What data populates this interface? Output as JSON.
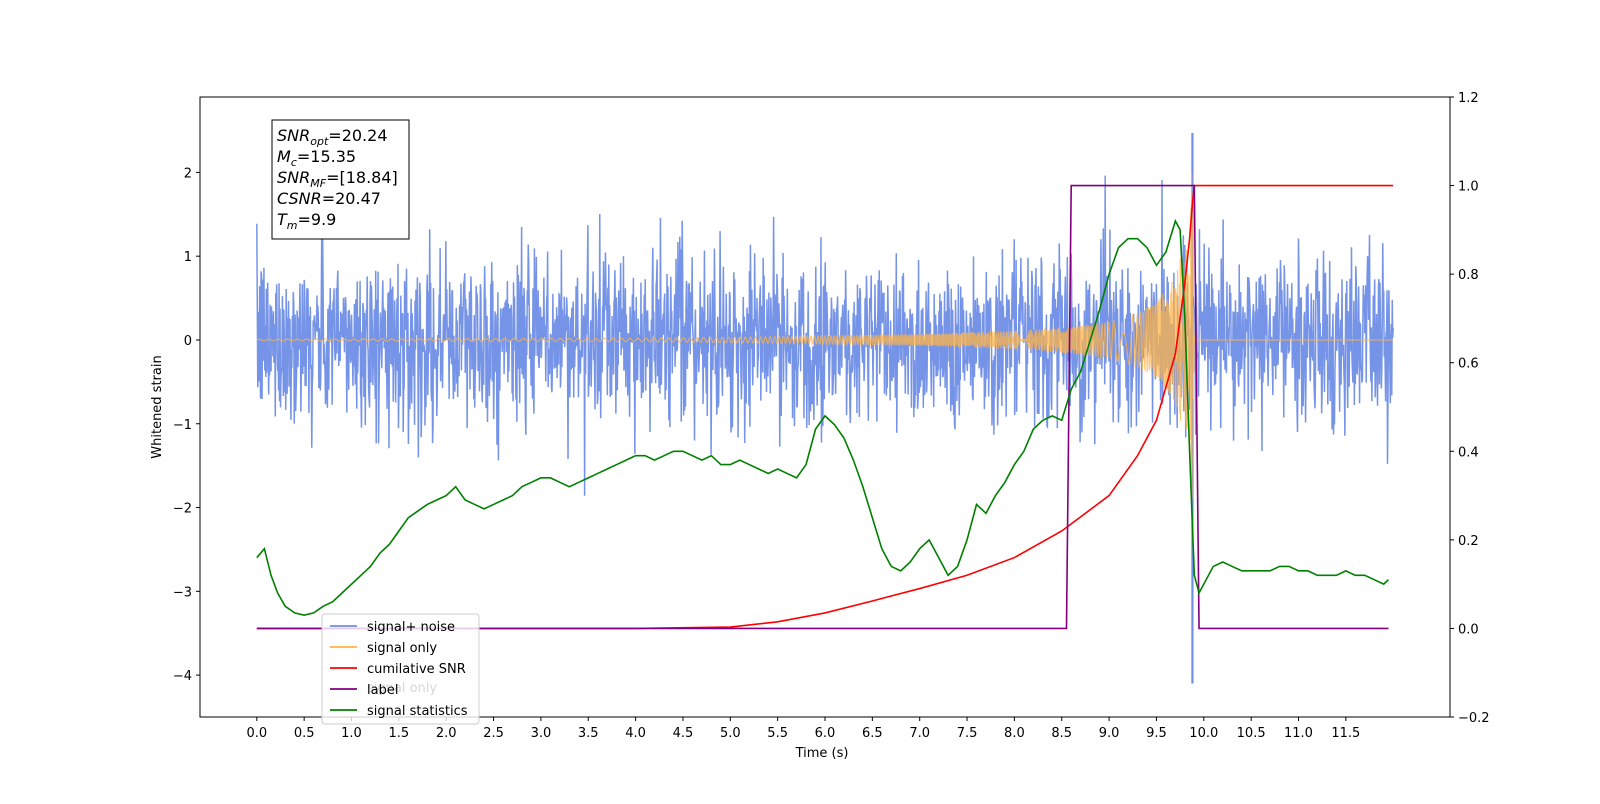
{
  "chart_data": {
    "type": "line",
    "xlabel": "Time (s)",
    "ylabel": "Whitened strain",
    "xlim": [
      -0.6,
      12.6
    ],
    "ylim_left": [
      -4.5,
      2.9
    ],
    "ylim_right": [
      -0.2,
      1.2
    ],
    "x_ticks": [
      "0.0",
      "0.5",
      "1.0",
      "1.5",
      "2.0",
      "2.5",
      "3.0",
      "3.5",
      "4.0",
      "4.5",
      "5.0",
      "5.5",
      "6.0",
      "6.5",
      "7.0",
      "7.5",
      "8.0",
      "8.5",
      "9.0",
      "9.5",
      "10.0",
      "10.5",
      "11.0",
      "11.5"
    ],
    "y_ticks_left": [
      "2",
      "1",
      "0",
      "−1",
      "−2",
      "−3",
      "−4"
    ],
    "y_ticks_right": [
      "1.2",
      "1.0",
      "0.8",
      "0.6",
      "0.4",
      "0.2",
      "0.0",
      "−0.2"
    ],
    "grid": false,
    "legend_placement": "lower-left",
    "annotation": {
      "lines": [
        {
          "sym": "SNR",
          "sub": "opt",
          "val": "=20.24"
        },
        {
          "sym": "M",
          "sub": "c",
          "val": "=15.35"
        },
        {
          "sym": "SNR",
          "sub": "MF",
          "val": "=[18.84]"
        },
        {
          "sym": "CSNR",
          "sub": "",
          "val": "=20.47"
        },
        {
          "sym": "T",
          "sub": "m",
          "val": "=9.9"
        }
      ]
    },
    "legend": [
      {
        "label": "signal+ noise",
        "color": "#6f8ee6"
      },
      {
        "label": "signal only",
        "color": "#ffb347"
      },
      {
        "label": "cumilative SNR",
        "color": "#ff0000"
      },
      {
        "label": "label",
        "color": "#800080"
      },
      {
        "label": "signal statistics",
        "color": "#008000"
      }
    ],
    "ghost_legend_text": [
      "signal only"
    ],
    "noise": {
      "name": "signal+ noise",
      "color": "#6f8ee6",
      "axis": "left",
      "x_range": [
        0.0,
        12.0
      ],
      "sigma": 0.5,
      "spike_max": 2.57,
      "spike_min": -4.1,
      "spike_time": 9.88
    },
    "signal": {
      "name": "signal only",
      "color": "#ffb347",
      "axis": "left",
      "envelope_points": [
        [
          0.0,
          0.01
        ],
        [
          4.0,
          0.02
        ],
        [
          5.5,
          0.04
        ],
        [
          7.0,
          0.07
        ],
        [
          8.0,
          0.11
        ],
        [
          8.5,
          0.15
        ],
        [
          9.0,
          0.22
        ],
        [
          9.3,
          0.32
        ],
        [
          9.5,
          0.45
        ],
        [
          9.7,
          0.75
        ],
        [
          9.8,
          1.2
        ],
        [
          9.88,
          2.1
        ],
        [
          9.9,
          0.0
        ],
        [
          12.0,
          0.0
        ]
      ]
    },
    "series": [
      {
        "name": "cumilative SNR",
        "color": "#ff0000",
        "axis": "right",
        "x": [
          0.0,
          4.0,
          5.0,
          5.5,
          6.0,
          6.5,
          7.0,
          7.5,
          8.0,
          8.5,
          9.0,
          9.3,
          9.5,
          9.7,
          9.8,
          9.85,
          9.88,
          9.9,
          12.0
        ],
        "y": [
          0.0,
          0.0,
          0.003,
          0.015,
          0.035,
          0.062,
          0.09,
          0.12,
          0.16,
          0.22,
          0.3,
          0.39,
          0.47,
          0.62,
          0.78,
          0.88,
          0.96,
          1.0,
          1.0
        ]
      },
      {
        "name": "label",
        "color": "#800080",
        "axis": "right",
        "x": [
          0.0,
          8.55,
          8.6,
          9.85,
          9.9,
          9.95,
          11.95
        ],
        "y": [
          0.0,
          0.0,
          1.0,
          1.0,
          1.0,
          0.0,
          0.0
        ]
      },
      {
        "name": "signal statistics",
        "color": "#008000",
        "axis": "right",
        "x": [
          0.0,
          0.08,
          0.15,
          0.22,
          0.3,
          0.4,
          0.5,
          0.6,
          0.7,
          0.8,
          0.9,
          1.0,
          1.1,
          1.2,
          1.3,
          1.4,
          1.5,
          1.6,
          1.7,
          1.8,
          1.9,
          2.0,
          2.1,
          2.2,
          2.3,
          2.4,
          2.5,
          2.6,
          2.7,
          2.8,
          2.9,
          3.0,
          3.1,
          3.2,
          3.3,
          3.4,
          3.5,
          3.6,
          3.7,
          3.8,
          3.9,
          4.0,
          4.1,
          4.2,
          4.3,
          4.4,
          4.5,
          4.6,
          4.7,
          4.8,
          4.9,
          5.0,
          5.1,
          5.2,
          5.3,
          5.4,
          5.5,
          5.6,
          5.7,
          5.8,
          5.9,
          6.0,
          6.1,
          6.2,
          6.3,
          6.4,
          6.5,
          6.6,
          6.7,
          6.8,
          6.9,
          7.0,
          7.1,
          7.2,
          7.3,
          7.4,
          7.5,
          7.6,
          7.7,
          7.8,
          7.9,
          8.0,
          8.1,
          8.2,
          8.3,
          8.4,
          8.5,
          8.6,
          8.7,
          8.8,
          8.9,
          9.0,
          9.1,
          9.2,
          9.3,
          9.4,
          9.5,
          9.6,
          9.7,
          9.75,
          9.8,
          9.85,
          9.9,
          9.95,
          10.0,
          10.1,
          10.2,
          10.3,
          10.4,
          10.5,
          10.6,
          10.7,
          10.8,
          10.9,
          11.0,
          11.1,
          11.2,
          11.3,
          11.4,
          11.5,
          11.6,
          11.7,
          11.8,
          11.9,
          11.95
        ],
        "y": [
          0.16,
          0.18,
          0.12,
          0.08,
          0.05,
          0.035,
          0.03,
          0.035,
          0.05,
          0.06,
          0.08,
          0.1,
          0.12,
          0.14,
          0.17,
          0.19,
          0.22,
          0.25,
          0.265,
          0.28,
          0.29,
          0.3,
          0.32,
          0.29,
          0.28,
          0.27,
          0.28,
          0.29,
          0.3,
          0.32,
          0.33,
          0.34,
          0.34,
          0.33,
          0.32,
          0.33,
          0.34,
          0.35,
          0.36,
          0.37,
          0.38,
          0.39,
          0.39,
          0.38,
          0.39,
          0.4,
          0.4,
          0.39,
          0.38,
          0.39,
          0.37,
          0.37,
          0.38,
          0.37,
          0.36,
          0.35,
          0.36,
          0.35,
          0.34,
          0.37,
          0.45,
          0.48,
          0.46,
          0.43,
          0.38,
          0.32,
          0.25,
          0.18,
          0.14,
          0.13,
          0.15,
          0.18,
          0.2,
          0.16,
          0.12,
          0.14,
          0.2,
          0.28,
          0.26,
          0.3,
          0.33,
          0.37,
          0.4,
          0.45,
          0.47,
          0.48,
          0.47,
          0.54,
          0.58,
          0.65,
          0.72,
          0.8,
          0.86,
          0.88,
          0.88,
          0.86,
          0.82,
          0.85,
          0.92,
          0.9,
          0.7,
          0.4,
          0.12,
          0.08,
          0.1,
          0.14,
          0.15,
          0.14,
          0.13,
          0.13,
          0.13,
          0.13,
          0.14,
          0.14,
          0.13,
          0.13,
          0.12,
          0.12,
          0.12,
          0.13,
          0.12,
          0.12,
          0.11,
          0.1,
          0.11
        ]
      }
    ]
  }
}
